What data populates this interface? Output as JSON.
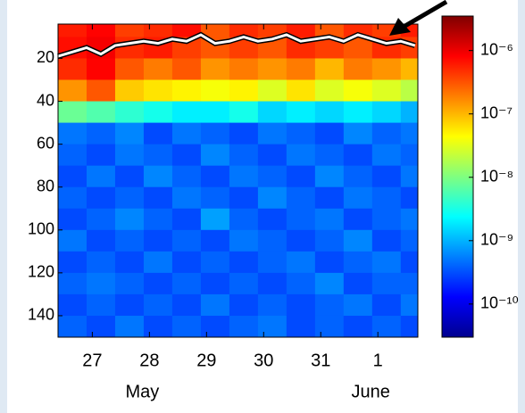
{
  "chart_data": {
    "type": "heatmap",
    "xlim": [
      26.4,
      32.7
    ],
    "xticks": [
      27,
      28,
      29,
      30,
      31,
      {
        "value": 32,
        "label": "1"
      }
    ],
    "month_labels": [
      {
        "value": 28,
        "label": "May"
      },
      {
        "value": 32,
        "label": "June"
      }
    ],
    "ylim": [
      4,
      150
    ],
    "y_inverted": true,
    "yticks": [
      20,
      40,
      60,
      80,
      100,
      120,
      140
    ],
    "xbins": [
      26.4,
      26.9,
      27.4,
      27.9,
      28.4,
      28.9,
      29.4,
      29.9,
      30.4,
      30.9,
      31.4,
      31.9,
      32.4,
      32.7
    ],
    "ybins": [
      4,
      10,
      20,
      30,
      40,
      50,
      60,
      70,
      80,
      90,
      100,
      110,
      120,
      130,
      140,
      150
    ],
    "z": [
      [
        6e-07,
        8e-07,
        4e-07,
        5e-07,
        7e-07,
        3e-07,
        5e-07,
        4e-07,
        6e-07,
        3e-07,
        5e-07,
        4e-07,
        6e-07
      ],
      [
        7e-07,
        9e-07,
        5e-07,
        6e-07,
        4e-07,
        3e-07,
        4e-07,
        3e-07,
        5e-07,
        4e-07,
        3e-07,
        5e-07,
        4e-07
      ],
      [
        5e-07,
        8e-07,
        3e-07,
        2e-07,
        3e-07,
        1.5e-07,
        2e-07,
        1.5e-07,
        2e-07,
        1e-07,
        2e-07,
        1.5e-07,
        1e-07
      ],
      [
        1.5e-07,
        3e-07,
        8e-08,
        6e-08,
        5e-08,
        4e-08,
        5e-08,
        3e-08,
        6e-08,
        3e-08,
        4e-08,
        3e-08,
        2e-08
      ],
      [
        8e-09,
        6e-09,
        4e-09,
        3e-09,
        2e-09,
        2e-09,
        3e-09,
        1.5e-09,
        2e-09,
        1.5e-09,
        2e-09,
        1.5e-09,
        1e-09
      ],
      [
        5e-10,
        4e-10,
        6e-10,
        3e-10,
        5e-10,
        4e-10,
        3e-10,
        5e-10,
        4e-10,
        3e-10,
        6e-10,
        4e-10,
        5e-10
      ],
      [
        4e-10,
        3e-10,
        5e-10,
        4e-10,
        3e-10,
        6e-10,
        4e-10,
        3e-10,
        5e-10,
        4e-10,
        3e-10,
        5e-10,
        4e-10
      ],
      [
        3e-10,
        5e-10,
        3e-10,
        6e-10,
        4e-10,
        3e-10,
        5e-10,
        4e-10,
        3e-10,
        6e-10,
        4e-10,
        3e-10,
        5e-10
      ],
      [
        4e-10,
        3e-10,
        4e-10,
        3e-10,
        5e-10,
        4e-10,
        3e-10,
        6e-10,
        4e-10,
        3e-10,
        5e-10,
        4e-10,
        3e-10
      ],
      [
        3e-10,
        4e-10,
        6e-10,
        4e-10,
        3e-10,
        8e-10,
        4e-10,
        3e-10,
        4e-10,
        5e-10,
        3e-10,
        4e-10,
        5e-10
      ],
      [
        5e-10,
        3e-10,
        4e-10,
        3e-10,
        4e-10,
        3e-10,
        5e-10,
        4e-10,
        3e-10,
        4e-10,
        6e-10,
        3e-10,
        4e-10
      ],
      [
        3e-10,
        4e-10,
        3e-10,
        5e-10,
        3e-10,
        4e-10,
        3e-10,
        4e-10,
        5e-10,
        3e-10,
        4e-10,
        5e-10,
        3e-10
      ],
      [
        4e-10,
        5e-10,
        4e-10,
        3e-10,
        4e-10,
        3e-10,
        4e-10,
        3e-10,
        4e-10,
        6e-10,
        3e-10,
        4e-10,
        4e-10
      ],
      [
        3e-10,
        4e-10,
        3e-10,
        4e-10,
        3e-10,
        5e-10,
        3e-10,
        4e-10,
        3e-10,
        4e-10,
        5e-10,
        3e-10,
        5e-10
      ],
      [
        4e-10,
        3e-10,
        5e-10,
        3e-10,
        4e-10,
        3e-10,
        4e-10,
        5e-10,
        3e-10,
        4e-10,
        3e-10,
        4e-10,
        3e-10
      ]
    ],
    "colormap": "jet",
    "zscale": "log",
    "zlim": [
      3e-11,
      3.5e-06
    ],
    "zticks": [
      {
        "value": 1e-06,
        "label": "10⁻⁶"
      },
      {
        "value": 1e-07,
        "label": "10⁻⁷"
      },
      {
        "value": 1e-08,
        "label": "10⁻⁸"
      },
      {
        "value": 1e-09,
        "label": "10⁻⁹"
      },
      {
        "value": 1e-10,
        "label": "10⁻¹⁰"
      }
    ],
    "line": {
      "color": "#ffffff",
      "x": [
        26.4,
        26.65,
        26.9,
        27.15,
        27.4,
        27.65,
        27.9,
        28.15,
        28.4,
        28.65,
        28.9,
        29.15,
        29.4,
        29.65,
        29.9,
        30.15,
        30.4,
        30.65,
        30.9,
        31.15,
        31.4,
        31.65,
        31.9,
        32.15,
        32.4,
        32.65
      ],
      "values": [
        19,
        17,
        15,
        18,
        14,
        13,
        12,
        13,
        11,
        12,
        9,
        13,
        12,
        10,
        12,
        11,
        9,
        12,
        11,
        10,
        12,
        9,
        11,
        13,
        12,
        14
      ]
    }
  }
}
